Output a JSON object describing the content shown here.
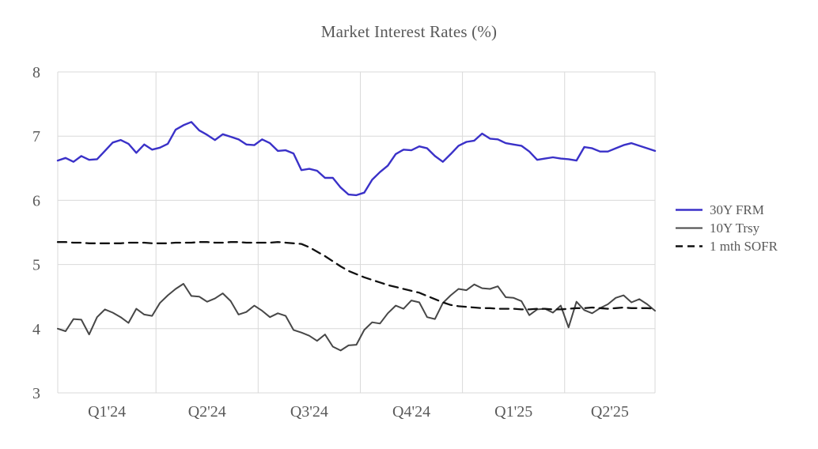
{
  "chart": {
    "title": "Market Interest Rates (%)"
  },
  "chart_data": {
    "type": "line",
    "title": "Market Interest Rates (%)",
    "frequency": "weekly",
    "x_axis": {
      "tick_labels": [
        "Q1'24",
        "Q2'24",
        "Q3'24",
        "Q4'24",
        "Q1'25",
        "Q2'25"
      ],
      "points_per_quarter": [
        13,
        13,
        13,
        13,
        13,
        12
      ]
    },
    "y_axis": {
      "min": 3,
      "max": 8,
      "tick_labels": [
        "3",
        "4",
        "5",
        "6",
        "7",
        "8"
      ]
    },
    "grid": true,
    "legend_position": "right",
    "text_color": "#595959",
    "grid_color": "#d9d9d9",
    "series": [
      {
        "name": "30Y FRM",
        "color": "#3a31c8",
        "line_style": "solid",
        "values": [
          6.62,
          6.66,
          6.6,
          6.69,
          6.63,
          6.64,
          6.77,
          6.9,
          6.94,
          6.88,
          6.74,
          6.87,
          6.79,
          6.82,
          6.88,
          7.1,
          7.17,
          7.22,
          7.09,
          7.02,
          6.94,
          7.03,
          6.99,
          6.95,
          6.87,
          6.86,
          6.95,
          6.89,
          6.77,
          6.78,
          6.73,
          6.47,
          6.49,
          6.46,
          6.35,
          6.35,
          6.2,
          6.09,
          6.08,
          6.12,
          6.32,
          6.44,
          6.54,
          6.72,
          6.79,
          6.78,
          6.84,
          6.81,
          6.69,
          6.6,
          6.72,
          6.85,
          6.91,
          6.93,
          7.04,
          6.96,
          6.95,
          6.89,
          6.87,
          6.85,
          6.76,
          6.63,
          6.65,
          6.67,
          6.65,
          6.64,
          6.62,
          6.83,
          6.81,
          6.76,
          6.76,
          6.81,
          6.86,
          6.89,
          6.85,
          6.81,
          6.77
        ]
      },
      {
        "name": "10Y Trsy",
        "color": "#474747",
        "line_style": "solid",
        "values": [
          4.0,
          3.96,
          4.15,
          4.14,
          3.91,
          4.18,
          4.3,
          4.25,
          4.18,
          4.09,
          4.31,
          4.22,
          4.2,
          4.4,
          4.52,
          4.62,
          4.7,
          4.51,
          4.5,
          4.42,
          4.47,
          4.55,
          4.43,
          4.22,
          4.26,
          4.36,
          4.28,
          4.18,
          4.24,
          4.2,
          3.98,
          3.94,
          3.89,
          3.81,
          3.91,
          3.72,
          3.66,
          3.74,
          3.75,
          3.98,
          4.1,
          4.08,
          4.24,
          4.36,
          4.31,
          4.44,
          4.41,
          4.18,
          4.15,
          4.4,
          4.52,
          4.62,
          4.6,
          4.69,
          4.63,
          4.62,
          4.66,
          4.49,
          4.48,
          4.43,
          4.21,
          4.3,
          4.31,
          4.25,
          4.36,
          4.02,
          4.42,
          4.29,
          4.24,
          4.32,
          4.38,
          4.48,
          4.52,
          4.41,
          4.46,
          4.38,
          4.28
        ]
      },
      {
        "name": "1 mth SOFR",
        "color": "#111111",
        "line_style": "dashed",
        "values": [
          5.35,
          5.35,
          5.34,
          5.34,
          5.33,
          5.33,
          5.33,
          5.33,
          5.33,
          5.34,
          5.34,
          5.34,
          5.33,
          5.33,
          5.33,
          5.34,
          5.34,
          5.34,
          5.35,
          5.35,
          5.34,
          5.34,
          5.35,
          5.35,
          5.34,
          5.34,
          5.34,
          5.34,
          5.35,
          5.34,
          5.33,
          5.32,
          5.27,
          5.2,
          5.13,
          5.05,
          4.97,
          4.9,
          4.85,
          4.8,
          4.76,
          4.72,
          4.68,
          4.65,
          4.62,
          4.59,
          4.56,
          4.51,
          4.46,
          4.41,
          4.37,
          4.35,
          4.34,
          4.33,
          4.32,
          4.32,
          4.31,
          4.31,
          4.31,
          4.3,
          4.3,
          4.31,
          4.31,
          4.3,
          4.3,
          4.31,
          4.32,
          4.32,
          4.33,
          4.32,
          4.31,
          4.32,
          4.33,
          4.32,
          4.32,
          4.32,
          4.31
        ]
      }
    ]
  }
}
